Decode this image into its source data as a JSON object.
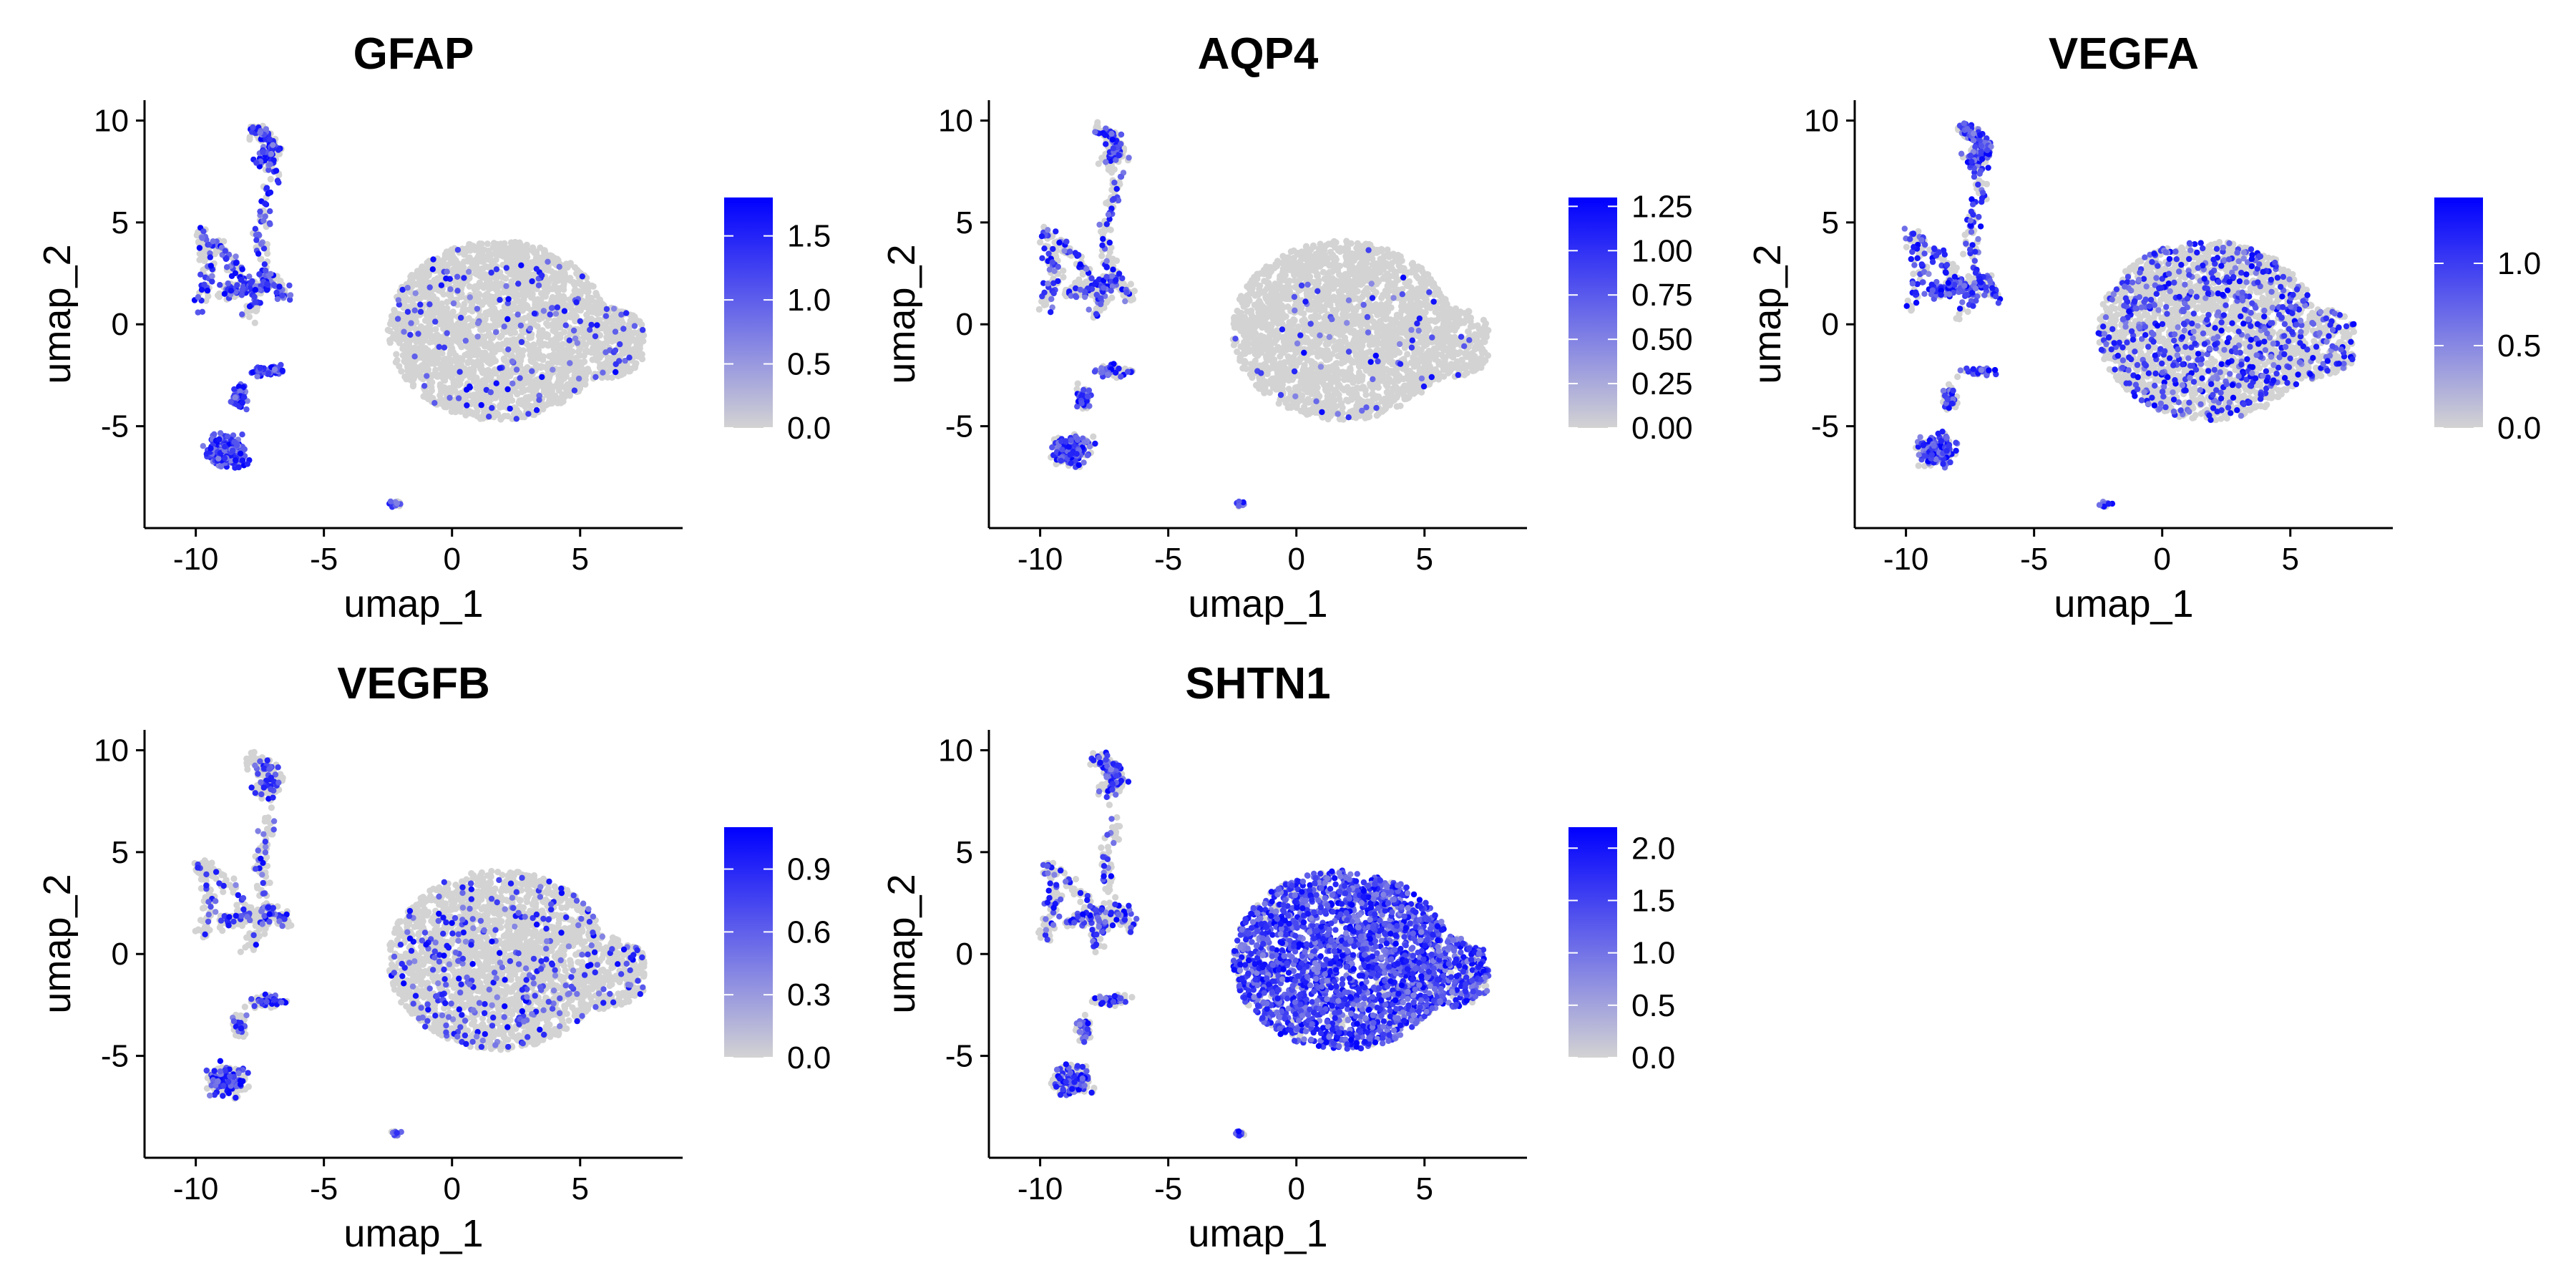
{
  "figure": {
    "gradient_low_color": "#d3d3d3",
    "gradient_high_color": "#0000ff"
  },
  "chart_data": [
    {
      "type": "scatter",
      "title": "GFAP",
      "xlabel": "umap_1",
      "ylabel": "umap_2",
      "xlim": [
        -12,
        9
      ],
      "ylim": [
        -10,
        11
      ],
      "xticks": [
        -10,
        -5,
        0,
        5
      ],
      "xtick_labels": [
        "-10",
        "-5",
        "0",
        "5"
      ],
      "yticks": [
        -5,
        0,
        5,
        10
      ],
      "ytick_labels": [
        "-5",
        "0",
        "5",
        "10"
      ],
      "grid": false,
      "legend": {
        "placement": "right",
        "max": 1.8,
        "ticks": [
          0,
          0.5,
          1.0,
          1.5
        ],
        "tick_labels": [
          "0.0",
          "0.5",
          "1.0",
          "1.5"
        ]
      },
      "expression": {
        "main": 0.06,
        "left": 0.55,
        "bottom": 1.2
      }
    },
    {
      "type": "scatter",
      "title": "AQP4",
      "xlabel": "umap_1",
      "ylabel": "umap_2",
      "xlim": [
        -12,
        9
      ],
      "ylim": [
        -10,
        11
      ],
      "xticks": [
        -10,
        -5,
        0,
        5
      ],
      "xtick_labels": [
        "-10",
        "-5",
        "0",
        "5"
      ],
      "yticks": [
        -5,
        0,
        5,
        10
      ],
      "ytick_labels": [
        "-5",
        "0",
        "5",
        "10"
      ],
      "grid": false,
      "legend": {
        "placement": "right",
        "max": 1.3,
        "ticks": [
          0,
          0.25,
          0.5,
          0.75,
          1.0,
          1.25
        ],
        "tick_labels": [
          "0.00",
          "0.25",
          "0.50",
          "0.75",
          "1.00",
          "1.25"
        ]
      },
      "expression": {
        "main": 0.02,
        "left": 0.4,
        "bottom": 0.6
      }
    },
    {
      "type": "scatter",
      "title": "VEGFA",
      "xlabel": "umap_1",
      "ylabel": "umap_2",
      "xlim": [
        -12,
        9
      ],
      "ylim": [
        -10,
        11
      ],
      "xticks": [
        -10,
        -5,
        0,
        5
      ],
      "xtick_labels": [
        "-10",
        "-5",
        "0",
        "5"
      ],
      "yticks": [
        -5,
        0,
        5,
        10
      ],
      "ytick_labels": [
        "-5",
        "0",
        "5",
        "10"
      ],
      "grid": false,
      "legend": {
        "placement": "right",
        "max": 1.4,
        "ticks": [
          0,
          0.5,
          1.0
        ],
        "tick_labels": [
          "0.0",
          "0.5",
          "1.0"
        ]
      },
      "expression": {
        "main": 0.25,
        "left": 0.6,
        "bottom": 0.6
      }
    },
    {
      "type": "scatter",
      "title": "VEGFB",
      "xlabel": "umap_1",
      "ylabel": "umap_2",
      "xlim": [
        -12,
        9
      ],
      "ylim": [
        -10,
        11
      ],
      "xticks": [
        -10,
        -5,
        0,
        5
      ],
      "xtick_labels": [
        "-10",
        "-5",
        "0",
        "5"
      ],
      "yticks": [
        -5,
        0,
        5,
        10
      ],
      "ytick_labels": [
        "-5",
        "0",
        "5",
        "10"
      ],
      "grid": false,
      "legend": {
        "placement": "right",
        "max": 1.1,
        "ticks": [
          0,
          0.3,
          0.6,
          0.9
        ],
        "tick_labels": [
          "0.0",
          "0.3",
          "0.6",
          "0.9"
        ]
      },
      "expression": {
        "main": 0.12,
        "left": 0.25,
        "bottom": 0.35
      }
    },
    {
      "type": "scatter",
      "title": "SHTN1",
      "xlabel": "umap_1",
      "ylabel": "umap_2",
      "xlim": [
        -12,
        9
      ],
      "ylim": [
        -10,
        11
      ],
      "xticks": [
        -10,
        -5,
        0,
        5
      ],
      "xtick_labels": [
        "-10",
        "-5",
        "0",
        "5"
      ],
      "yticks": [
        -5,
        0,
        5,
        10
      ],
      "ytick_labels": [
        "-5",
        "0",
        "5",
        "10"
      ],
      "grid": false,
      "legend": {
        "placement": "right",
        "max": 2.2,
        "ticks": [
          0,
          0.5,
          1.0,
          1.5,
          2.0
        ],
        "tick_labels": [
          "0.0",
          "0.5",
          "1.0",
          "1.5",
          "2.0"
        ]
      },
      "expression": {
        "main": 0.85,
        "left": 0.35,
        "bottom": 0.3
      }
    }
  ]
}
